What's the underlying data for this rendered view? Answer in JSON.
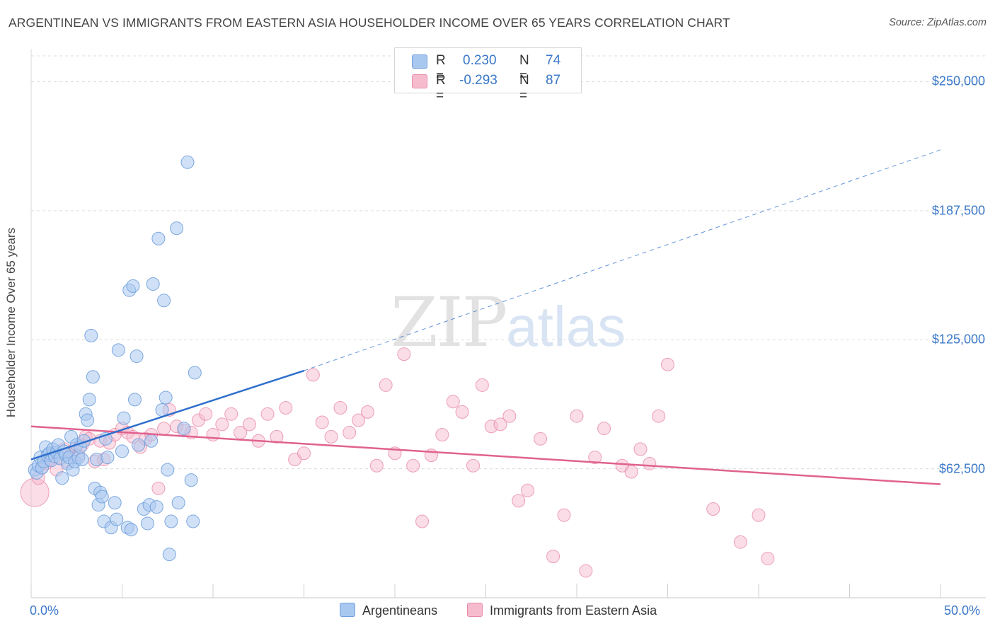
{
  "title": "ARGENTINEAN VS IMMIGRANTS FROM EASTERN ASIA HOUSEHOLDER INCOME OVER 65 YEARS CORRELATION CHART",
  "source": "Source: ZipAtlas.com",
  "watermark": {
    "zip": "ZIP",
    "atlas": "atlas"
  },
  "colors": {
    "blue_fill": "#a9c8f0",
    "blue_stroke": "#6f9fdc",
    "blue_line": "#2f6fcc",
    "pink_fill": "#f6bccd",
    "pink_stroke": "#e88aa8",
    "pink_line": "#e0628e",
    "tick_text": "#3a78c9"
  },
  "legend": {
    "rows": [
      {
        "r_label": "R =",
        "r_value": "0.230",
        "n_label": "N =",
        "n_value": "74"
      },
      {
        "r_label": "R =",
        "r_value": "-0.293",
        "n_label": "N =",
        "n_value": "87"
      }
    ]
  },
  "series_labels": [
    "Argentineans",
    "Immigrants from Eastern Asia"
  ],
  "chart_data": {
    "type": "scatter",
    "ylabel": "Householder Income Over 65 years",
    "xlim": [
      0,
      50
    ],
    "ylim": [
      0,
      262500
    ],
    "x_tick_labels": [
      "0.0%",
      "50.0%"
    ],
    "y_ticks": [
      62500,
      125000,
      187500,
      250000
    ],
    "y_tick_labels": [
      "$62,500",
      "$125,000",
      "$187,500",
      "$250,000"
    ],
    "grid": true,
    "series": [
      {
        "name": "Argentineans",
        "color": "#a9c8f0",
        "trend": {
          "x": [
            0,
            15
          ],
          "y": [
            67000,
            110000
          ],
          "dashed_to": [
            50,
            217000
          ]
        },
        "points": [
          [
            0.2,
            62000
          ],
          [
            0.3,
            60500
          ],
          [
            0.4,
            64000
          ],
          [
            0.5,
            68000
          ],
          [
            0.6,
            63000
          ],
          [
            0.7,
            66000
          ],
          [
            0.8,
            73000
          ],
          [
            0.9,
            69000
          ],
          [
            1.0,
            70000
          ],
          [
            1.1,
            66500
          ],
          [
            1.2,
            72000
          ],
          [
            1.3,
            68500
          ],
          [
            1.4,
            70500
          ],
          [
            1.5,
            74000
          ],
          [
            1.6,
            67500
          ],
          [
            1.7,
            58000
          ],
          [
            1.8,
            71000
          ],
          [
            1.9,
            69500
          ],
          [
            2.0,
            65000
          ],
          [
            2.1,
            68000
          ],
          [
            2.2,
            78000
          ],
          [
            2.3,
            62000
          ],
          [
            2.4,
            66000
          ],
          [
            2.5,
            74000
          ],
          [
            2.6,
            68000
          ],
          [
            2.7,
            73000
          ],
          [
            2.8,
            67000
          ],
          [
            2.9,
            76000
          ],
          [
            3.0,
            89000
          ],
          [
            3.1,
            86000
          ],
          [
            3.2,
            96000
          ],
          [
            3.3,
            127000
          ],
          [
            3.4,
            107000
          ],
          [
            3.5,
            53000
          ],
          [
            3.6,
            67000
          ],
          [
            3.7,
            45000
          ],
          [
            3.8,
            51000
          ],
          [
            3.9,
            49000
          ],
          [
            4.0,
            37000
          ],
          [
            4.1,
            77000
          ],
          [
            4.2,
            68000
          ],
          [
            4.4,
            34000
          ],
          [
            4.6,
            46000
          ],
          [
            4.7,
            38000
          ],
          [
            4.8,
            120000
          ],
          [
            5.0,
            71000
          ],
          [
            5.1,
            87000
          ],
          [
            5.3,
            34000
          ],
          [
            5.4,
            149000
          ],
          [
            5.5,
            33000
          ],
          [
            5.6,
            151000
          ],
          [
            5.7,
            96000
          ],
          [
            5.8,
            117000
          ],
          [
            5.9,
            74000
          ],
          [
            6.2,
            43000
          ],
          [
            6.4,
            36000
          ],
          [
            6.5,
            45000
          ],
          [
            6.6,
            76000
          ],
          [
            6.7,
            152000
          ],
          [
            6.9,
            44000
          ],
          [
            7.0,
            174000
          ],
          [
            7.2,
            91000
          ],
          [
            7.3,
            144000
          ],
          [
            7.4,
            97000
          ],
          [
            7.5,
            62000
          ],
          [
            7.6,
            21000
          ],
          [
            7.7,
            37000
          ],
          [
            8.0,
            179000
          ],
          [
            8.1,
            46000
          ],
          [
            8.4,
            82000
          ],
          [
            8.6,
            211000
          ],
          [
            8.8,
            57000
          ],
          [
            8.9,
            37000
          ],
          [
            9.0,
            109000
          ]
        ]
      },
      {
        "name": "Immigrants from Eastern Asia",
        "color": "#f6bccd",
        "trend": {
          "x": [
            0,
            50
          ],
          "y": [
            83000,
            55000
          ]
        },
        "points": [
          [
            0.2,
            51000
          ],
          [
            0.4,
            58000
          ],
          [
            0.6,
            63000
          ],
          [
            0.8,
            65000
          ],
          [
            1.0,
            67000
          ],
          [
            1.2,
            70000
          ],
          [
            1.4,
            62000
          ],
          [
            1.6,
            68000
          ],
          [
            1.8,
            72000
          ],
          [
            2.0,
            66000
          ],
          [
            2.2,
            70000
          ],
          [
            2.4,
            72000
          ],
          [
            2.6,
            69000
          ],
          [
            2.8,
            74000
          ],
          [
            3.0,
            78000
          ],
          [
            3.2,
            77000
          ],
          [
            3.5,
            66000
          ],
          [
            3.8,
            76000
          ],
          [
            4.0,
            67000
          ],
          [
            4.3,
            75000
          ],
          [
            4.6,
            79000
          ],
          [
            5.0,
            82000
          ],
          [
            5.3,
            80000
          ],
          [
            5.6,
            78000
          ],
          [
            6.0,
            73000
          ],
          [
            6.3,
            77000
          ],
          [
            6.6,
            79000
          ],
          [
            7.0,
            53000
          ],
          [
            7.3,
            82000
          ],
          [
            7.6,
            91000
          ],
          [
            8.0,
            83000
          ],
          [
            8.4,
            81000
          ],
          [
            8.8,
            80000
          ],
          [
            9.2,
            86000
          ],
          [
            9.6,
            89000
          ],
          [
            10.0,
            79000
          ],
          [
            10.5,
            84000
          ],
          [
            11.0,
            89000
          ],
          [
            11.5,
            80000
          ],
          [
            12.0,
            84000
          ],
          [
            12.5,
            76000
          ],
          [
            13.0,
            89000
          ],
          [
            13.5,
            78000
          ],
          [
            14.0,
            92000
          ],
          [
            14.5,
            67000
          ],
          [
            15.0,
            70000
          ],
          [
            15.5,
            108000
          ],
          [
            16.0,
            85000
          ],
          [
            16.5,
            78000
          ],
          [
            17.0,
            92000
          ],
          [
            17.5,
            80000
          ],
          [
            18.0,
            86000
          ],
          [
            18.5,
            90000
          ],
          [
            19.0,
            64000
          ],
          [
            19.5,
            103000
          ],
          [
            20.0,
            70000
          ],
          [
            20.5,
            118000
          ],
          [
            21.0,
            64000
          ],
          [
            21.5,
            37000
          ],
          [
            22.0,
            69000
          ],
          [
            22.6,
            79000
          ],
          [
            23.2,
            95000
          ],
          [
            23.7,
            90000
          ],
          [
            24.3,
            64000
          ],
          [
            24.8,
            103000
          ],
          [
            25.3,
            83000
          ],
          [
            25.8,
            84000
          ],
          [
            26.3,
            88000
          ],
          [
            26.8,
            47000
          ],
          [
            27.3,
            52000
          ],
          [
            28.0,
            77000
          ],
          [
            28.7,
            20000
          ],
          [
            29.3,
            40000
          ],
          [
            30.0,
            88000
          ],
          [
            30.5,
            13000
          ],
          [
            31.0,
            68000
          ],
          [
            31.5,
            82000
          ],
          [
            32.5,
            64000
          ],
          [
            33.0,
            61000
          ],
          [
            33.5,
            72000
          ],
          [
            34.0,
            65000
          ],
          [
            34.5,
            88000
          ],
          [
            35.0,
            113000
          ],
          [
            37.5,
            43000
          ],
          [
            39.0,
            27000
          ],
          [
            40.0,
            40000
          ],
          [
            40.5,
            19000
          ]
        ]
      }
    ]
  }
}
